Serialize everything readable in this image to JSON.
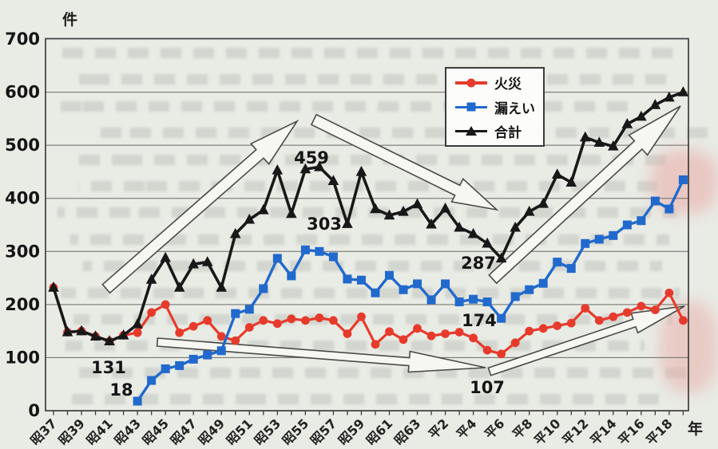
{
  "axis": {
    "unit_y": "件",
    "unit_x": "年"
  },
  "legend": {
    "items": [
      {
        "label": "火災",
        "color": "#e63b2c",
        "marker": "circle"
      },
      {
        "label": "漏えい",
        "color": "#2169cc",
        "marker": "square"
      },
      {
        "label": "合計",
        "color": "#181818",
        "marker": "triangle"
      }
    ]
  },
  "chart_data": {
    "type": "line",
    "title": "",
    "xlabel": "年",
    "ylabel": "件",
    "ylim": [
      0,
      700
    ],
    "y_ticks": [
      0,
      100,
      200,
      300,
      400,
      500,
      600,
      700
    ],
    "grid": true,
    "legend_position": "upper middle",
    "x_start_year": "昭37",
    "x_end_year": "平19",
    "x_tick_labels": [
      "昭37",
      "昭39",
      "昭41",
      "昭43",
      "昭45",
      "昭47",
      "昭49",
      "昭51",
      "昭53",
      "昭55",
      "昭57",
      "昭59",
      "昭61",
      "昭63",
      "平2",
      "平4",
      "平6",
      "平8",
      "平10",
      "平12",
      "平14",
      "平16",
      "平18"
    ],
    "x_tick_indices": [
      0,
      2,
      4,
      6,
      8,
      10,
      12,
      14,
      16,
      18,
      20,
      22,
      24,
      26,
      28,
      30,
      32,
      34,
      36,
      38,
      40,
      42,
      44
    ],
    "series": [
      {
        "key": "fire",
        "name": "火災",
        "color": "#e63b2c",
        "marker": "circle",
        "line_width": 3.2,
        "values": [
          232,
          148,
          150,
          140,
          131,
          142,
          147,
          185,
          200,
          147,
          159,
          170,
          140,
          132,
          157,
          170,
          164,
          173,
          170,
          175,
          170,
          145,
          177,
          125,
          149,
          134,
          155,
          141,
          145,
          148,
          137,
          114,
          107,
          128,
          150,
          155,
          160,
          165,
          193,
          170,
          177,
          185,
          197,
          190,
          222,
          170
        ]
      },
      {
        "key": "leak",
        "name": "漏えい",
        "color": "#2169cc",
        "marker": "square",
        "line_width": 3.4,
        "values": [
          null,
          null,
          null,
          null,
          null,
          null,
          18,
          57,
          79,
          85,
          97,
          105,
          113,
          183,
          191,
          230,
          287,
          254,
          303,
          300,
          290,
          248,
          246,
          222,
          255,
          228,
          239,
          209,
          239,
          205,
          210,
          205,
          174,
          215,
          228,
          240,
          280,
          268,
          315,
          323,
          330,
          350,
          358,
          395,
          380,
          435
        ]
      },
      {
        "key": "total",
        "name": "合計",
        "color": "#181818",
        "marker": "triangle",
        "line_width": 3.6,
        "values": [
          232,
          148,
          150,
          140,
          131,
          142,
          163,
          247,
          288,
          232,
          276,
          280,
          232,
          333,
          360,
          378,
          453,
          371,
          455,
          459,
          433,
          352,
          450,
          380,
          368,
          375,
          389,
          351,
          381,
          345,
          333,
          315,
          287,
          345,
          375,
          390,
          445,
          430,
          515,
          505,
          498,
          540,
          554,
          576,
          590,
          600
        ]
      }
    ],
    "annotations": [
      {
        "text": "459",
        "x": 390,
        "y": 205
      },
      {
        "text": "303",
        "x": 406,
        "y": 288
      },
      {
        "text": "287",
        "x": 599,
        "y": 337
      },
      {
        "text": "174",
        "x": 600,
        "y": 409
      },
      {
        "text": "131",
        "x": 136,
        "y": 468
      },
      {
        "text": "18",
        "x": 152,
        "y": 496
      },
      {
        "text": "107",
        "x": 610,
        "y": 493
      }
    ],
    "trend_arrows": [
      {
        "name": "rise-left",
        "from": [
          133,
          362
        ],
        "to": [
          372,
          152
        ],
        "tail_hw": 7,
        "head_hw": 17,
        "head_len": 62
      },
      {
        "name": "fall-middle",
        "from": [
          393,
          150
        ],
        "to": [
          622,
          263
        ],
        "tail_hw": 7,
        "head_hw": 16,
        "head_len": 55
      },
      {
        "name": "flat-bottom",
        "from": [
          197,
          429
        ],
        "to": [
          608,
          461
        ],
        "tail_hw": 5,
        "head_hw": 13,
        "head_len": 96
      },
      {
        "name": "rise-bottom",
        "from": [
          613,
          466
        ],
        "to": [
          857,
          384
        ],
        "tail_hw": 5,
        "head_hw": 13,
        "head_len": 66
      },
      {
        "name": "rise-right",
        "from": [
          617,
          350
        ],
        "to": [
          852,
          133
        ],
        "tail_hw": 7,
        "head_hw": 17,
        "head_len": 72
      }
    ]
  }
}
